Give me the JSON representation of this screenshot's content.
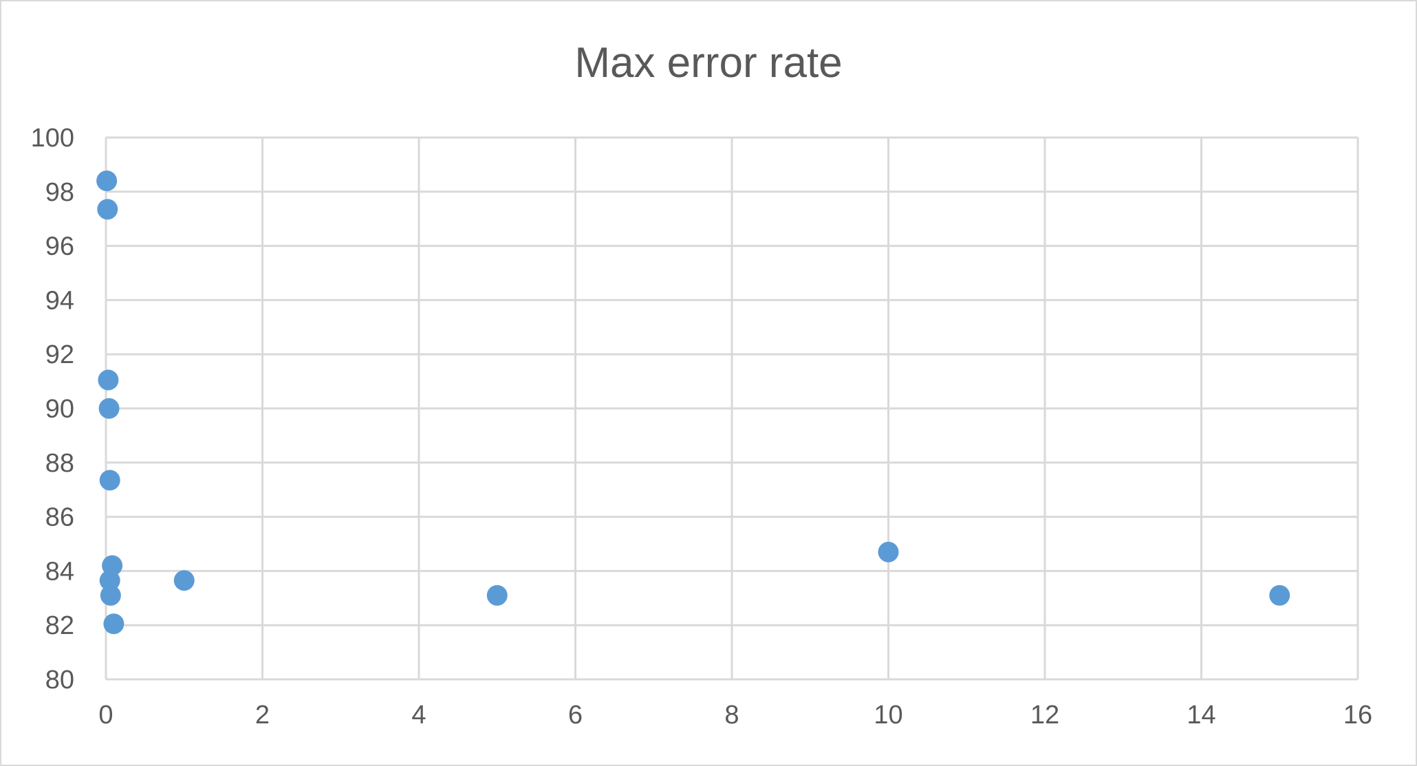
{
  "chart_data": {
    "type": "scatter",
    "title": "Max error rate",
    "xlabel": "",
    "ylabel": "",
    "xlim": [
      0,
      16
    ],
    "ylim": [
      80,
      100
    ],
    "x_ticks": [
      0,
      2,
      4,
      6,
      8,
      10,
      12,
      14,
      16
    ],
    "y_ticks": [
      80,
      82,
      84,
      86,
      88,
      90,
      92,
      94,
      96,
      98,
      100
    ],
    "grid": true,
    "legend": "none",
    "colors": {
      "marker": "#5b9bd5",
      "grid": "#d9d9d9",
      "text": "#595959"
    },
    "series": [
      {
        "points": [
          {
            "x": 0.01,
            "y": 98.4
          },
          {
            "x": 0.02,
            "y": 97.35
          },
          {
            "x": 0.03,
            "y": 91.05
          },
          {
            "x": 0.04,
            "y": 90.0
          },
          {
            "x": 0.05,
            "y": 87.35
          },
          {
            "x": 0.08,
            "y": 84.2
          },
          {
            "x": 0.05,
            "y": 83.65
          },
          {
            "x": 0.06,
            "y": 83.1
          },
          {
            "x": 0.1,
            "y": 82.05
          },
          {
            "x": 1,
            "y": 83.65
          },
          {
            "x": 5,
            "y": 83.1
          },
          {
            "x": 10,
            "y": 84.7
          },
          {
            "x": 15,
            "y": 83.1
          }
        ]
      }
    ]
  }
}
